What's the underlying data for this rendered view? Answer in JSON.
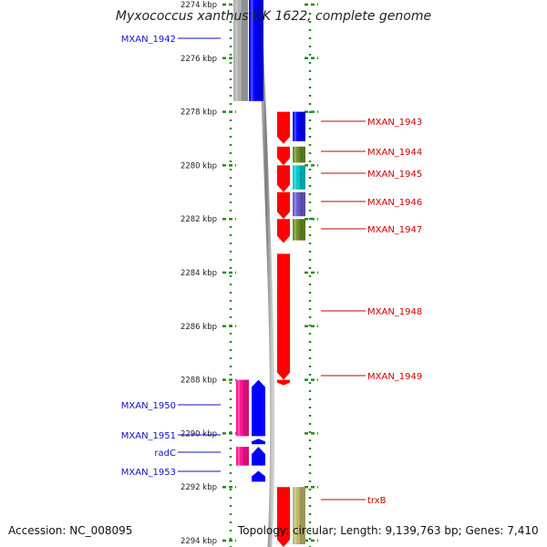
{
  "title": "Myxococcus xanthus DK 1622, complete genome",
  "accession_text": "Accession: NC_008095",
  "topology_text": "Topology: circular; Length: 9,139,763 bp; Genes: 7,410",
  "ruler": {
    "unit": "kbp",
    "ticks": [
      "2274 kbp",
      "2276 kbp",
      "2278 kbp",
      "2280 kbp",
      "2282 kbp",
      "2284 kbp",
      "2286 kbp",
      "2288 kbp",
      "2290 kbp",
      "2292 kbp",
      "2294 kbp"
    ],
    "range_kbp": [
      2274,
      2294
    ]
  },
  "colors": {
    "left_label": "#1010c8",
    "right_label": "#cc0000",
    "axis_tick": "#228b22"
  },
  "genes": [
    {
      "id": "MXAN_1942",
      "label": "MXAN_1942",
      "side": "left",
      "color": "#0000ff",
      "cog_color": "#b0b0b0",
      "start_kbp": 2273.5,
      "end_kbp": 2277.6
    },
    {
      "id": "MXAN_1943",
      "label": "MXAN_1943",
      "side": "right",
      "color": "#ff0000",
      "cog_color": "#0000ff",
      "start_kbp": 2278.0,
      "end_kbp": 2279.2
    },
    {
      "id": "MXAN_1944",
      "label": "MXAN_1944",
      "side": "right",
      "color": "#ff0000",
      "cog_color": "#6b8e23",
      "start_kbp": 2279.3,
      "end_kbp": 2280.0
    },
    {
      "id": "MXAN_1945",
      "label": "MXAN_1945",
      "side": "right",
      "color": "#ff0000",
      "cog_color": "#00c8c8",
      "start_kbp": 2280.0,
      "end_kbp": 2281.0
    },
    {
      "id": "MXAN_1946",
      "label": "MXAN_1946",
      "side": "right",
      "color": "#ff0000",
      "cog_color": "#6a5acd",
      "start_kbp": 2281.0,
      "end_kbp": 2282.0
    },
    {
      "id": "MXAN_1947",
      "label": "MXAN_1947",
      "side": "right",
      "color": "#ff0000",
      "cog_color": "#6b8e23",
      "start_kbp": 2282.0,
      "end_kbp": 2282.9
    },
    {
      "id": "MXAN_1948",
      "label": "MXAN_1948",
      "side": "right",
      "color": "#ff0000",
      "cog_color": null,
      "start_kbp": 2283.3,
      "end_kbp": 2288.0
    },
    {
      "id": "MXAN_1949",
      "label": "MXAN_1949",
      "side": "right",
      "color": "#ff0000",
      "cog_color": null,
      "start_kbp": 2288.0,
      "end_kbp": 2288.1
    },
    {
      "id": "MXAN_1950",
      "label": "MXAN_1950",
      "side": "left",
      "color": "#0000ff",
      "cog_color": "#ff1493",
      "start_kbp": 2288.0,
      "end_kbp": 2290.1
    },
    {
      "id": "MXAN_1951",
      "label": "MXAN_1951",
      "side": "left",
      "color": "#0000ff",
      "cog_color": null,
      "start_kbp": 2290.2,
      "end_kbp": 2290.4
    },
    {
      "id": "radC",
      "label": "radC",
      "side": "left",
      "color": "#0000ff",
      "cog_color": "#ff1493",
      "start_kbp": 2290.5,
      "end_kbp": 2291.2
    },
    {
      "id": "MXAN_1953",
      "label": "MXAN_1953",
      "side": "left",
      "color": "#0000ff",
      "cog_color": null,
      "start_kbp": 2291.4,
      "end_kbp": 2291.8
    },
    {
      "id": "trxB",
      "label": "trxB",
      "side": "right",
      "color": "#ff0000",
      "cog_color": "#bdb76b",
      "start_kbp": 2292.0,
      "end_kbp": 2294.5
    }
  ]
}
